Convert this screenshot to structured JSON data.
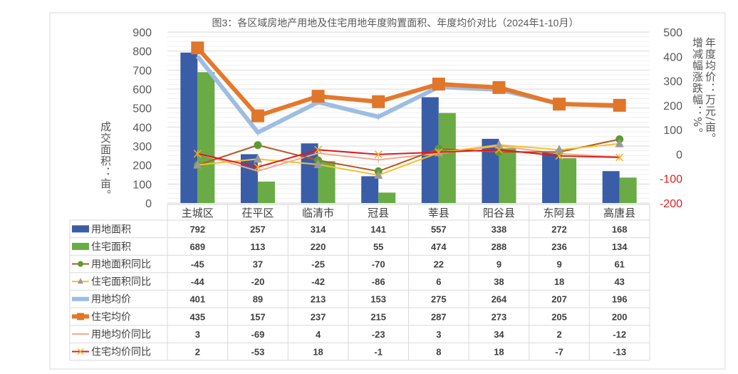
{
  "chart_data": {
    "type": "bar+line",
    "title": "图3：各区域房地产用地及住宅用地年度购置面积、年度均价对比（2024年1-10月）",
    "categories": [
      "主城区",
      "茌平区",
      "临清市",
      "冠县",
      "莘县",
      "阳谷县",
      "东阿县",
      "高唐县"
    ],
    "ylabel_left": "成交面积：亩。",
    "ylabel_right": "年度均价：万元/亩。增减幅涨跌幅：%。",
    "ylabel_right_parts": [
      "年度均价：万元/亩。",
      "增减幅涨跌幅：%。"
    ],
    "ylim_left": [
      0,
      900
    ],
    "yticks_left": [
      0,
      100,
      200,
      300,
      400,
      500,
      600,
      700,
      800,
      900
    ],
    "ylim_right": [
      -200,
      500
    ],
    "yticks_right": [
      -200,
      -100,
      0,
      100,
      200,
      300,
      400,
      500
    ],
    "grid": true,
    "legend": "data-table-left",
    "series": [
      {
        "name": "用地面积",
        "type": "bar",
        "axis": "left",
        "color": "#3a5da8",
        "values": [
          792,
          257,
          314,
          141,
          557,
          338,
          272,
          168
        ]
      },
      {
        "name": "住宅面积",
        "type": "bar",
        "axis": "left",
        "color": "#6aab46",
        "values": [
          689,
          113,
          220,
          55,
          474,
          288,
          236,
          134
        ]
      },
      {
        "name": "用地面积同比",
        "type": "line",
        "axis": "right",
        "color": "#b5591f",
        "marker": "circle",
        "marker_color": "#5e9a30",
        "values": [
          -45,
          37,
          -25,
          -70,
          22,
          9,
          9,
          61
        ]
      },
      {
        "name": "住宅面积同比",
        "type": "line",
        "axis": "right",
        "color": "#f3c12c",
        "marker": "triangle",
        "marker_color": "#9a9a9a",
        "values": [
          -44,
          -20,
          -42,
          -86,
          6,
          38,
          18,
          43
        ]
      },
      {
        "name": "用地均价",
        "type": "line",
        "axis": "right",
        "color": "#9dbde3",
        "marker": "dash",
        "marker_color": "#9dbde3",
        "values": [
          401,
          89,
          213,
          153,
          275,
          264,
          207,
          196
        ]
      },
      {
        "name": "住宅均价",
        "type": "line",
        "axis": "right",
        "color": "#e5782b",
        "marker": "square",
        "marker_color": "#e0762a",
        "values": [
          435,
          157,
          237,
          215,
          287,
          273,
          205,
          200
        ]
      },
      {
        "name": "用地均价同比",
        "type": "line",
        "axis": "right",
        "color": "#f0a88e",
        "marker": "dash",
        "marker_color": "#f0a88e",
        "values": [
          3,
          -69,
          4,
          -23,
          3,
          34,
          2,
          -12
        ]
      },
      {
        "name": "住宅均价同比",
        "type": "line",
        "axis": "right",
        "color": "#e01b1b",
        "marker": "x",
        "marker_color": "#f0b020",
        "values": [
          2,
          -53,
          18,
          -1,
          8,
          18,
          -7,
          -13
        ]
      }
    ]
  }
}
